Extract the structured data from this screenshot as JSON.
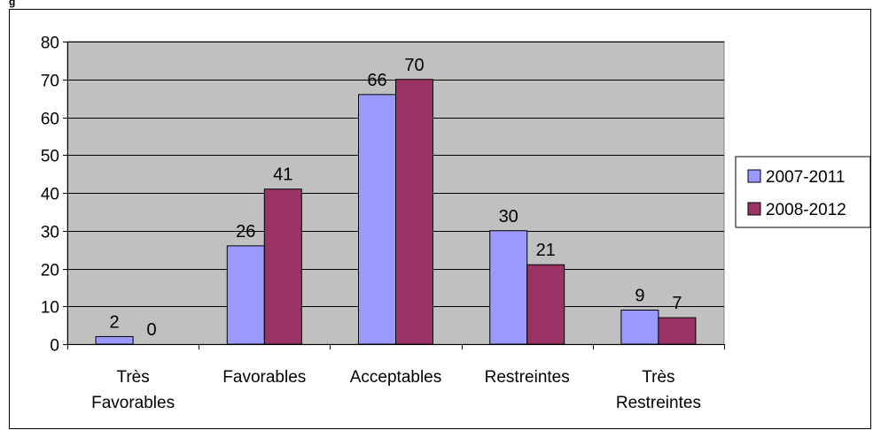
{
  "chart_data": {
    "type": "bar",
    "title": "",
    "xlabel": "",
    "ylabel": "",
    "ylim": [
      0,
      80
    ],
    "yticks": [
      "0",
      "10",
      "20",
      "30",
      "40",
      "50",
      "60",
      "70",
      "80"
    ],
    "categories": [
      [
        "Très",
        "Favorables"
      ],
      [
        "Favorables"
      ],
      [
        "Acceptables"
      ],
      [
        "Restreintes"
      ],
      [
        "Très",
        "Restreintes"
      ]
    ],
    "series": [
      {
        "name": "2007-2011",
        "color": "#9999ff",
        "values": [
          2,
          26,
          66,
          30,
          9
        ]
      },
      {
        "name": "2008-2012",
        "color": "#993366",
        "values": [
          0,
          41,
          70,
          21,
          7
        ]
      }
    ],
    "plot_background": "#c0c0c0",
    "grid": true,
    "legend": "right"
  }
}
